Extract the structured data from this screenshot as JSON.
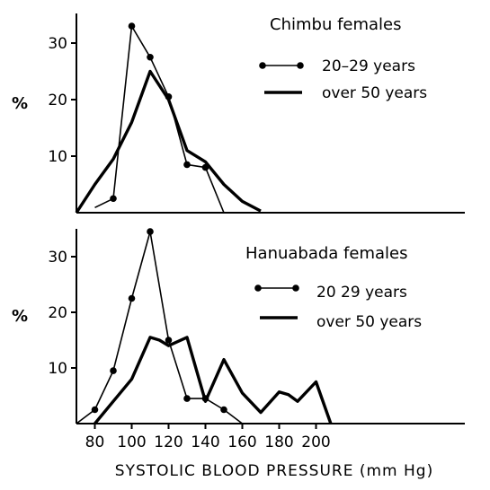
{
  "xlabel": "SYSTOLIC BLOOD PRESSURE (mm Hg)",
  "chart_data": [
    {
      "type": "line",
      "title": "Chimbu females",
      "ylabel": "%",
      "xlim": [
        70,
        210
      ],
      "ylim": [
        0,
        35
      ],
      "y_ticks": [
        10,
        20,
        30
      ],
      "series": [
        {
          "name": "20–29 years",
          "style": "dots",
          "x": [
            90,
            100,
            110,
            120,
            130,
            140,
            150
          ],
          "y": [
            2.5,
            33,
            27.5,
            20.5,
            8.5,
            8,
            0
          ]
        },
        {
          "name": "over 50 years",
          "style": "thick",
          "x": [
            70,
            80,
            90,
            100,
            110,
            120,
            130,
            140,
            150,
            160,
            170
          ],
          "y": [
            0,
            5,
            9.5,
            16,
            25,
            20,
            11,
            9,
            5,
            2,
            0.3
          ]
        }
      ]
    },
    {
      "type": "line",
      "title": "Hanuabada females",
      "ylabel": "%",
      "xlim": [
        70,
        210
      ],
      "ylim": [
        0,
        35
      ],
      "x_ticks": [
        80,
        100,
        120,
        140,
        160,
        180,
        200
      ],
      "y_ticks": [
        10,
        20,
        30
      ],
      "series": [
        {
          "name": "20  29 years",
          "style": "dots",
          "x": [
            70,
            80,
            90,
            100,
            110,
            120,
            130,
            140,
            150,
            160
          ],
          "y": [
            0,
            2.5,
            9.5,
            22.5,
            34.5,
            15,
            4.5,
            4.5,
            2.5,
            0
          ]
        },
        {
          "name": "over 50 years",
          "style": "thick",
          "x": [
            80,
            90,
            100,
            110,
            115,
            120,
            130,
            140,
            150,
            160,
            170,
            180,
            185,
            190,
            200,
            208
          ],
          "y": [
            0,
            4,
            8,
            15.5,
            15,
            14,
            15.5,
            4,
            11.5,
            5.5,
            2,
            5.7,
            5.2,
            4,
            7.5,
            0
          ]
        }
      ]
    }
  ]
}
